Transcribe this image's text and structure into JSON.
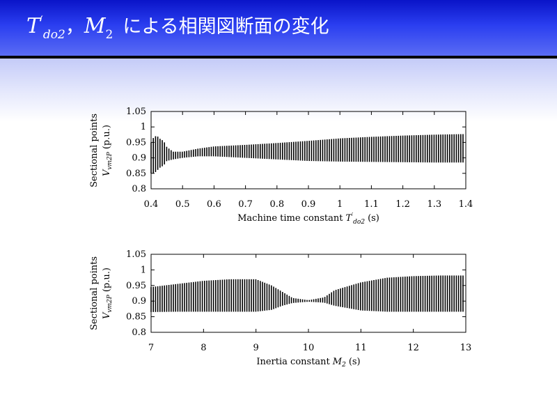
{
  "slide": {
    "title_sym1": "T",
    "title_sym1_sup": "′",
    "title_sym1_sub": "do2",
    "title_sep": "，",
    "title_sym2": "M",
    "title_sym2_sub": "2",
    "title_text": "による相関図断面の変化",
    "accent": "#1a2fe0"
  },
  "chart_data": [
    {
      "type": "scatter",
      "ylabel_line1": "Sectional points",
      "ylabel_line2_sym": "V",
      "ylabel_line2_sub": "vm2P",
      "ylabel_line2_unit": "(p.u.)",
      "xlabel_text": "Machine time constant",
      "xlabel_sym": "T",
      "xlabel_sup": "′",
      "xlabel_sub": "do2",
      "xlabel_unit": "(s)",
      "xlim": [
        0.4,
        1.4
      ],
      "ylim": [
        0.8,
        1.05
      ],
      "xticks": [
        0.4,
        0.5,
        0.6,
        0.7,
        0.8,
        0.9,
        1,
        1.1,
        1.2,
        1.3,
        1.4
      ],
      "xtick_labels": [
        "0.4",
        "0.5",
        "0.6",
        "0.7",
        "0.8",
        "0.9",
        "1",
        "1.1",
        "1.2",
        "1.3",
        "1.4"
      ],
      "yticks": [
        0.8,
        0.85,
        0.9,
        0.95,
        1,
        1.05
      ],
      "ytick_labels": [
        "0.8",
        "0.85",
        "0.9",
        "0.95",
        "1",
        "1.05"
      ],
      "grid": false,
      "series": [
        {
          "x": [
            0.4,
            0.41,
            0.42,
            0.43,
            0.44,
            0.45,
            0.47,
            0.5,
            0.55,
            0.6,
            0.7,
            0.8,
            0.9,
            1.0,
            1.1,
            1.2,
            1.3,
            1.4
          ],
          "ymin": [
            0.85,
            0.85,
            0.86,
            0.87,
            0.875,
            0.89,
            0.895,
            0.9,
            0.905,
            0.905,
            0.9,
            0.895,
            0.89,
            0.888,
            0.887,
            0.886,
            0.885,
            0.885
          ],
          "ymax": [
            0.95,
            0.97,
            0.97,
            0.96,
            0.955,
            0.935,
            0.92,
            0.92,
            0.93,
            0.937,
            0.942,
            0.948,
            0.955,
            0.963,
            0.968,
            0.972,
            0.975,
            0.977
          ]
        }
      ]
    },
    {
      "type": "scatter",
      "ylabel_line1": "Sectional points",
      "ylabel_line2_sym": "V",
      "ylabel_line2_sub": "vm2P",
      "ylabel_line2_unit": "(p.u.)",
      "xlabel_text": "Inertia constant",
      "xlabel_sym": "M",
      "xlabel_sub": "2",
      "xlabel_unit": "(s)",
      "xlim": [
        7,
        13
      ],
      "ylim": [
        0.8,
        1.05
      ],
      "xticks": [
        7,
        8,
        9,
        10,
        11,
        12,
        13
      ],
      "xtick_labels": [
        "7",
        "8",
        "9",
        "10",
        "11",
        "12",
        "13"
      ],
      "yticks": [
        0.8,
        0.85,
        0.9,
        0.95,
        1,
        1.05
      ],
      "ytick_labels": [
        "0.8",
        "0.85",
        "0.9",
        "0.95",
        "1",
        "1.05"
      ],
      "grid": false,
      "series": [
        {
          "x": [
            7.0,
            7.5,
            8.0,
            8.5,
            9.0,
            9.3,
            9.5,
            9.7,
            10.0,
            10.3,
            10.5,
            11.0,
            11.5,
            12.0,
            12.5,
            13.0
          ],
          "ymin": [
            0.865,
            0.866,
            0.866,
            0.866,
            0.866,
            0.872,
            0.885,
            0.894,
            0.898,
            0.895,
            0.885,
            0.87,
            0.866,
            0.866,
            0.866,
            0.866
          ],
          "ymax": [
            0.945,
            0.955,
            0.965,
            0.97,
            0.97,
            0.95,
            0.93,
            0.91,
            0.903,
            0.912,
            0.935,
            0.96,
            0.975,
            0.98,
            0.982,
            0.982
          ]
        }
      ]
    }
  ]
}
